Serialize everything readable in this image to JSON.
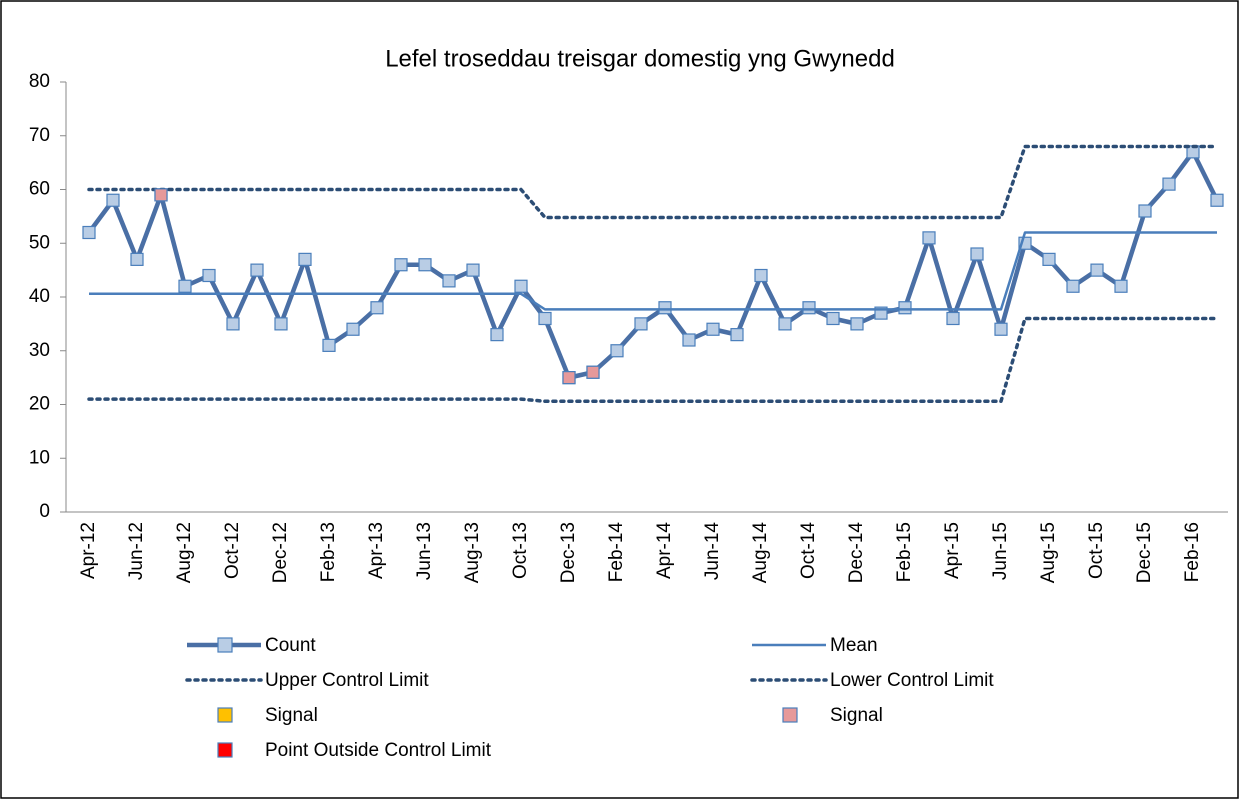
{
  "chart_data": {
    "type": "line",
    "title": "Lefel troseddau treisgar domestig yng Gwynedd",
    "categories": [
      "Apr-12",
      null,
      "Jun-12",
      null,
      "Aug-12",
      null,
      "Oct-12",
      null,
      "Dec-12",
      null,
      "Feb-13",
      null,
      "Apr-13",
      null,
      "Jun-13",
      null,
      "Aug-13",
      null,
      "Oct-13",
      null,
      "Dec-13",
      null,
      "Feb-14",
      null,
      "Apr-14",
      null,
      "Jun-14",
      null,
      "Aug-14",
      null,
      "Oct-14",
      null,
      "Dec-14",
      null,
      "Feb-15",
      null,
      "Apr-15",
      null,
      "Jun-15",
      null,
      "Aug-15",
      null,
      "Oct-15",
      null,
      "Dec-15",
      null,
      "Feb-16",
      null
    ],
    "series": [
      {
        "name": "Count",
        "color": "#4a6fa5",
        "line": "solid",
        "marker": "square",
        "marker_color": "#b9cde5",
        "values": [
          52,
          58,
          47,
          59,
          42,
          44,
          35,
          45,
          35,
          47,
          31,
          34,
          38,
          46,
          46,
          43,
          45,
          33,
          42,
          36,
          25,
          26,
          30,
          35,
          38,
          32,
          34,
          33,
          44,
          35,
          38,
          36,
          35,
          37,
          38,
          51,
          36,
          48,
          34,
          50,
          47,
          42,
          45,
          42,
          56,
          61,
          67,
          58
        ]
      },
      {
        "name": "Mean",
        "color": "#4a7ebb",
        "line": "thin",
        "marker": "none",
        "values": [
          40.6,
          40.6,
          40.6,
          40.6,
          40.6,
          40.6,
          40.6,
          40.6,
          40.6,
          40.6,
          40.6,
          40.6,
          40.6,
          40.6,
          40.6,
          40.6,
          40.6,
          40.6,
          40.6,
          37.7,
          37.7,
          37.7,
          37.7,
          37.7,
          37.7,
          37.7,
          37.7,
          37.7,
          37.7,
          37.7,
          37.7,
          37.7,
          37.7,
          37.7,
          37.7,
          37.7,
          37.7,
          37.7,
          37.7,
          52,
          52,
          52,
          52,
          52,
          52,
          52,
          52,
          52
        ]
      },
      {
        "name": "Upper Control Limit",
        "color": "#2c4d75",
        "line": "dotted",
        "marker": "none",
        "values": [
          60,
          60,
          60,
          60,
          60,
          60,
          60,
          60,
          60,
          60,
          60,
          60,
          60,
          60,
          60,
          60,
          60,
          60,
          60,
          54.8,
          54.8,
          54.8,
          54.8,
          54.8,
          54.8,
          54.8,
          54.8,
          54.8,
          54.8,
          54.8,
          54.8,
          54.8,
          54.8,
          54.8,
          54.8,
          54.8,
          54.8,
          54.8,
          54.8,
          68,
          68,
          68,
          68,
          68,
          68,
          68,
          68,
          68
        ]
      },
      {
        "name": "Lower Control Limit",
        "color": "#2c4d75",
        "line": "dotted",
        "marker": "none",
        "values": [
          21,
          21,
          21,
          21,
          21,
          21,
          21,
          21,
          21,
          21,
          21,
          21,
          21,
          21,
          21,
          21,
          21,
          21,
          21,
          20.6,
          20.6,
          20.6,
          20.6,
          20.6,
          20.6,
          20.6,
          20.6,
          20.6,
          20.6,
          20.6,
          20.6,
          20.6,
          20.6,
          20.6,
          20.6,
          20.6,
          20.6,
          20.6,
          20.6,
          36,
          36,
          36,
          36,
          36,
          36,
          36,
          36,
          36
        ]
      },
      {
        "name": "Signal",
        "color": "#4a7ebb",
        "line": "none",
        "marker": "square",
        "marker_color": "#ffc000",
        "values": [
          null,
          null,
          null,
          null,
          null,
          null,
          null,
          null,
          null,
          null,
          null,
          null,
          null,
          null,
          null,
          null,
          null,
          null,
          null,
          null,
          null,
          null,
          null,
          null,
          null,
          null,
          null,
          null,
          null,
          null,
          null,
          null,
          null,
          null,
          null,
          null,
          null,
          null,
          null,
          null,
          null,
          null,
          null,
          null,
          null,
          null,
          null,
          null
        ]
      },
      {
        "name": "Signal",
        "color": "#4a7ebb",
        "line": "none",
        "marker": "square",
        "marker_color": "#e6999a",
        "values": [
          null,
          null,
          null,
          59,
          null,
          null,
          null,
          null,
          null,
          null,
          null,
          null,
          null,
          null,
          null,
          null,
          null,
          null,
          null,
          null,
          25,
          26,
          null,
          null,
          null,
          null,
          null,
          null,
          null,
          null,
          null,
          null,
          null,
          null,
          null,
          null,
          null,
          null,
          null,
          null,
          null,
          null,
          null,
          null,
          null,
          null,
          null,
          null
        ]
      },
      {
        "name": "Point Outside Control Limit",
        "color": "#4a7ebb",
        "line": "none",
        "marker": "square",
        "marker_color": "#ff0000",
        "values": [
          null,
          null,
          null,
          null,
          null,
          null,
          null,
          null,
          null,
          null,
          null,
          null,
          null,
          null,
          null,
          null,
          null,
          null,
          null,
          null,
          null,
          null,
          null,
          null,
          null,
          null,
          null,
          null,
          null,
          null,
          null,
          null,
          null,
          null,
          null,
          null,
          null,
          null,
          null,
          null,
          null,
          null,
          null,
          null,
          null,
          null,
          null,
          null
        ]
      }
    ],
    "ylim": [
      0,
      80
    ],
    "yticks": [
      0,
      10,
      20,
      30,
      40,
      50,
      60,
      70,
      80
    ],
    "grid": false,
    "legend": "bottom"
  }
}
